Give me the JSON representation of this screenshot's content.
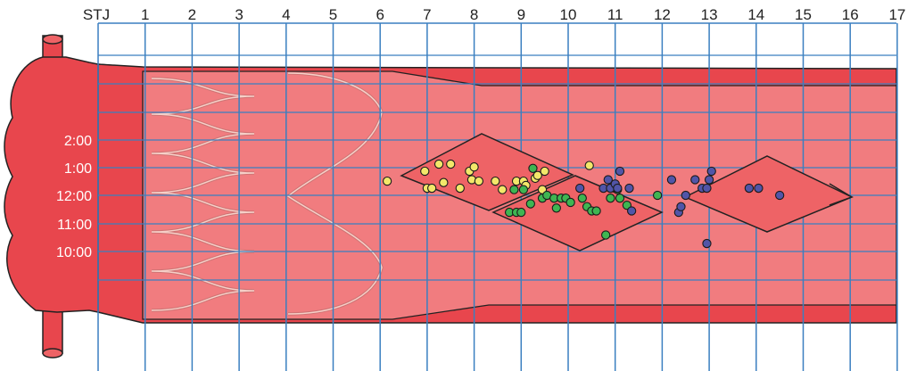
{
  "axis": {
    "x_labels": [
      "STJ",
      "1",
      "2",
      "3",
      "4",
      "5",
      "6",
      "7",
      "8",
      "9",
      "10",
      "11",
      "12",
      "13",
      "14",
      "15",
      "16",
      "17"
    ],
    "y_labels": [
      "2:00",
      "1:00",
      "12:00",
      "11:00",
      "10:00"
    ]
  },
  "colors": {
    "background": "#ffffff",
    "vessel_dark": "#e8464d",
    "vessel_mid": "#ee6366",
    "vessel_light": "#f17c7f",
    "grid_line": "#3a7fc0",
    "outline": "#222222",
    "stent_wire": "#f6d0c8",
    "series_yellow": "#f3e76a",
    "series_green": "#3fb552",
    "series_blue": "#5155a8"
  },
  "points": {
    "yellow": [
      [
        6.15,
        12.5
      ],
      [
        6.95,
        12.85
      ],
      [
        7.0,
        12.25
      ],
      [
        7.1,
        12.25
      ],
      [
        7.25,
        13.1
      ],
      [
        7.35,
        12.45
      ],
      [
        7.5,
        13.1
      ],
      [
        7.7,
        12.25
      ],
      [
        7.9,
        12.85
      ],
      [
        7.95,
        12.55
      ],
      [
        8.0,
        13.0
      ],
      [
        8.1,
        12.5
      ],
      [
        8.45,
        12.5
      ],
      [
        8.6,
        12.2
      ],
      [
        8.9,
        12.5
      ],
      [
        9.05,
        12.5
      ],
      [
        9.1,
        12.35
      ],
      [
        9.3,
        12.6
      ],
      [
        9.35,
        12.7
      ],
      [
        9.45,
        12.2
      ],
      [
        9.5,
        12.85
      ],
      [
        10.45,
        13.05
      ]
    ],
    "green": [
      [
        8.75,
        11.4
      ],
      [
        8.85,
        12.2
      ],
      [
        8.9,
        11.4
      ],
      [
        9.0,
        11.4
      ],
      [
        9.05,
        12.2
      ],
      [
        9.2,
        11.7
      ],
      [
        9.45,
        11.9
      ],
      [
        9.55,
        12.0
      ],
      [
        9.7,
        11.9
      ],
      [
        9.75,
        11.55
      ],
      [
        9.85,
        11.9
      ],
      [
        9.95,
        11.9
      ],
      [
        10.05,
        11.75
      ],
      [
        10.3,
        11.9
      ],
      [
        10.4,
        11.6
      ],
      [
        10.5,
        11.45
      ],
      [
        10.6,
        11.45
      ],
      [
        10.8,
        10.6
      ],
      [
        10.9,
        11.9
      ],
      [
        11.05,
        12.2
      ],
      [
        11.1,
        11.9
      ],
      [
        11.25,
        11.65
      ],
      [
        11.9,
        12.0
      ],
      [
        9.25,
        12.95
      ]
    ],
    "blue": [
      [
        10.25,
        12.25
      ],
      [
        10.75,
        12.25
      ],
      [
        10.85,
        12.55
      ],
      [
        10.9,
        12.25
      ],
      [
        11.0,
        12.4
      ],
      [
        11.05,
        12.25
      ],
      [
        11.1,
        12.85
      ],
      [
        11.3,
        12.25
      ],
      [
        11.35,
        11.45
      ],
      [
        12.2,
        12.55
      ],
      [
        12.35,
        11.4
      ],
      [
        12.4,
        11.6
      ],
      [
        12.5,
        12.0
      ],
      [
        12.7,
        12.55
      ],
      [
        12.85,
        12.25
      ],
      [
        12.95,
        12.25
      ],
      [
        13.0,
        12.55
      ],
      [
        13.05,
        12.85
      ],
      [
        12.95,
        10.3
      ],
      [
        13.85,
        12.25
      ],
      [
        14.05,
        12.25
      ],
      [
        14.5,
        12.0
      ]
    ]
  }
}
